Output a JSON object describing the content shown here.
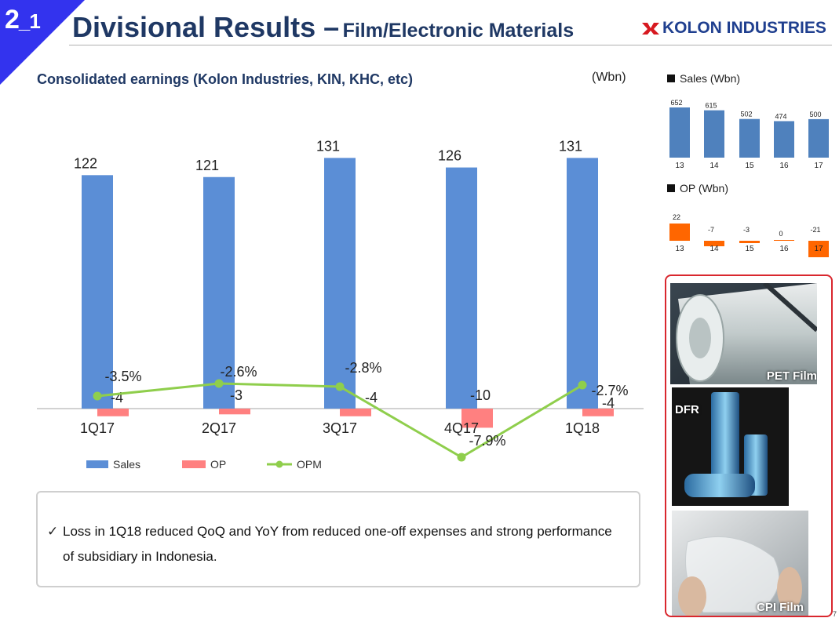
{
  "header": {
    "section_number": "2",
    "section_sub": "_1",
    "title_main": "Divisional Results –",
    "title_sub": "Film/Electronic Materials",
    "logo_text": "KOLON INDUSTRIES",
    "subtitle": "Consolidated earnings (Kolon Industries, KIN, KHC, etc)",
    "unit": "(Wbn)"
  },
  "colors": {
    "sales": "#5b8ed6",
    "op": "#ff8080",
    "opm": "#8fce4c",
    "mini_sales": "#4f81bd",
    "mini_op": "#ff6600",
    "title": "#1f3864",
    "logo_red": "#d71920",
    "frame": "#d9272e"
  },
  "chart_data": [
    {
      "type": "bar",
      "categories": [
        "1Q17",
        "2Q17",
        "3Q17",
        "4Q17",
        "1Q18"
      ],
      "series": [
        {
          "name": "Sales",
          "values": [
            122,
            121,
            131,
            126,
            131
          ],
          "labels": [
            "122",
            "121",
            "131",
            "126",
            "131"
          ]
        },
        {
          "name": "OP",
          "values": [
            -4,
            -3,
            -4,
            -10,
            -4
          ],
          "labels": [
            "-4",
            "-3",
            "-4",
            "-10",
            "-4"
          ]
        },
        {
          "name": "OPM",
          "type": "line",
          "values": [
            -3.5,
            -2.6,
            -2.8,
            -7.9,
            -2.7
          ],
          "labels": [
            "-3.5%",
            "-2.6%",
            "-2.8%",
            "-7.9%",
            "-2.7%"
          ]
        }
      ],
      "legend_position": "bottom-left"
    },
    {
      "type": "bar",
      "title": "Sales (Wbn)",
      "categories": [
        "13",
        "14",
        "15",
        "16",
        "17"
      ],
      "values": [
        652,
        615,
        502,
        474,
        500
      ],
      "labels": [
        "652",
        "615",
        "502",
        "474",
        "500"
      ]
    },
    {
      "type": "bar",
      "title": "OP (Wbn)",
      "categories": [
        "13",
        "14",
        "15",
        "16",
        "17"
      ],
      "values": [
        22,
        -7,
        -3,
        0,
        -21
      ],
      "labels": [
        "22",
        "-7",
        "-3",
        "0",
        "-21"
      ]
    }
  ],
  "note": {
    "check": "✓",
    "text": "Loss in 1Q18 reduced QoQ and YoY from reduced one-off expenses and strong performance of subsidiary in Indonesia."
  },
  "photos": [
    {
      "label": "PET Film"
    },
    {
      "label": "DFR"
    },
    {
      "label": "CPI Film"
    }
  ],
  "page_number": "7"
}
